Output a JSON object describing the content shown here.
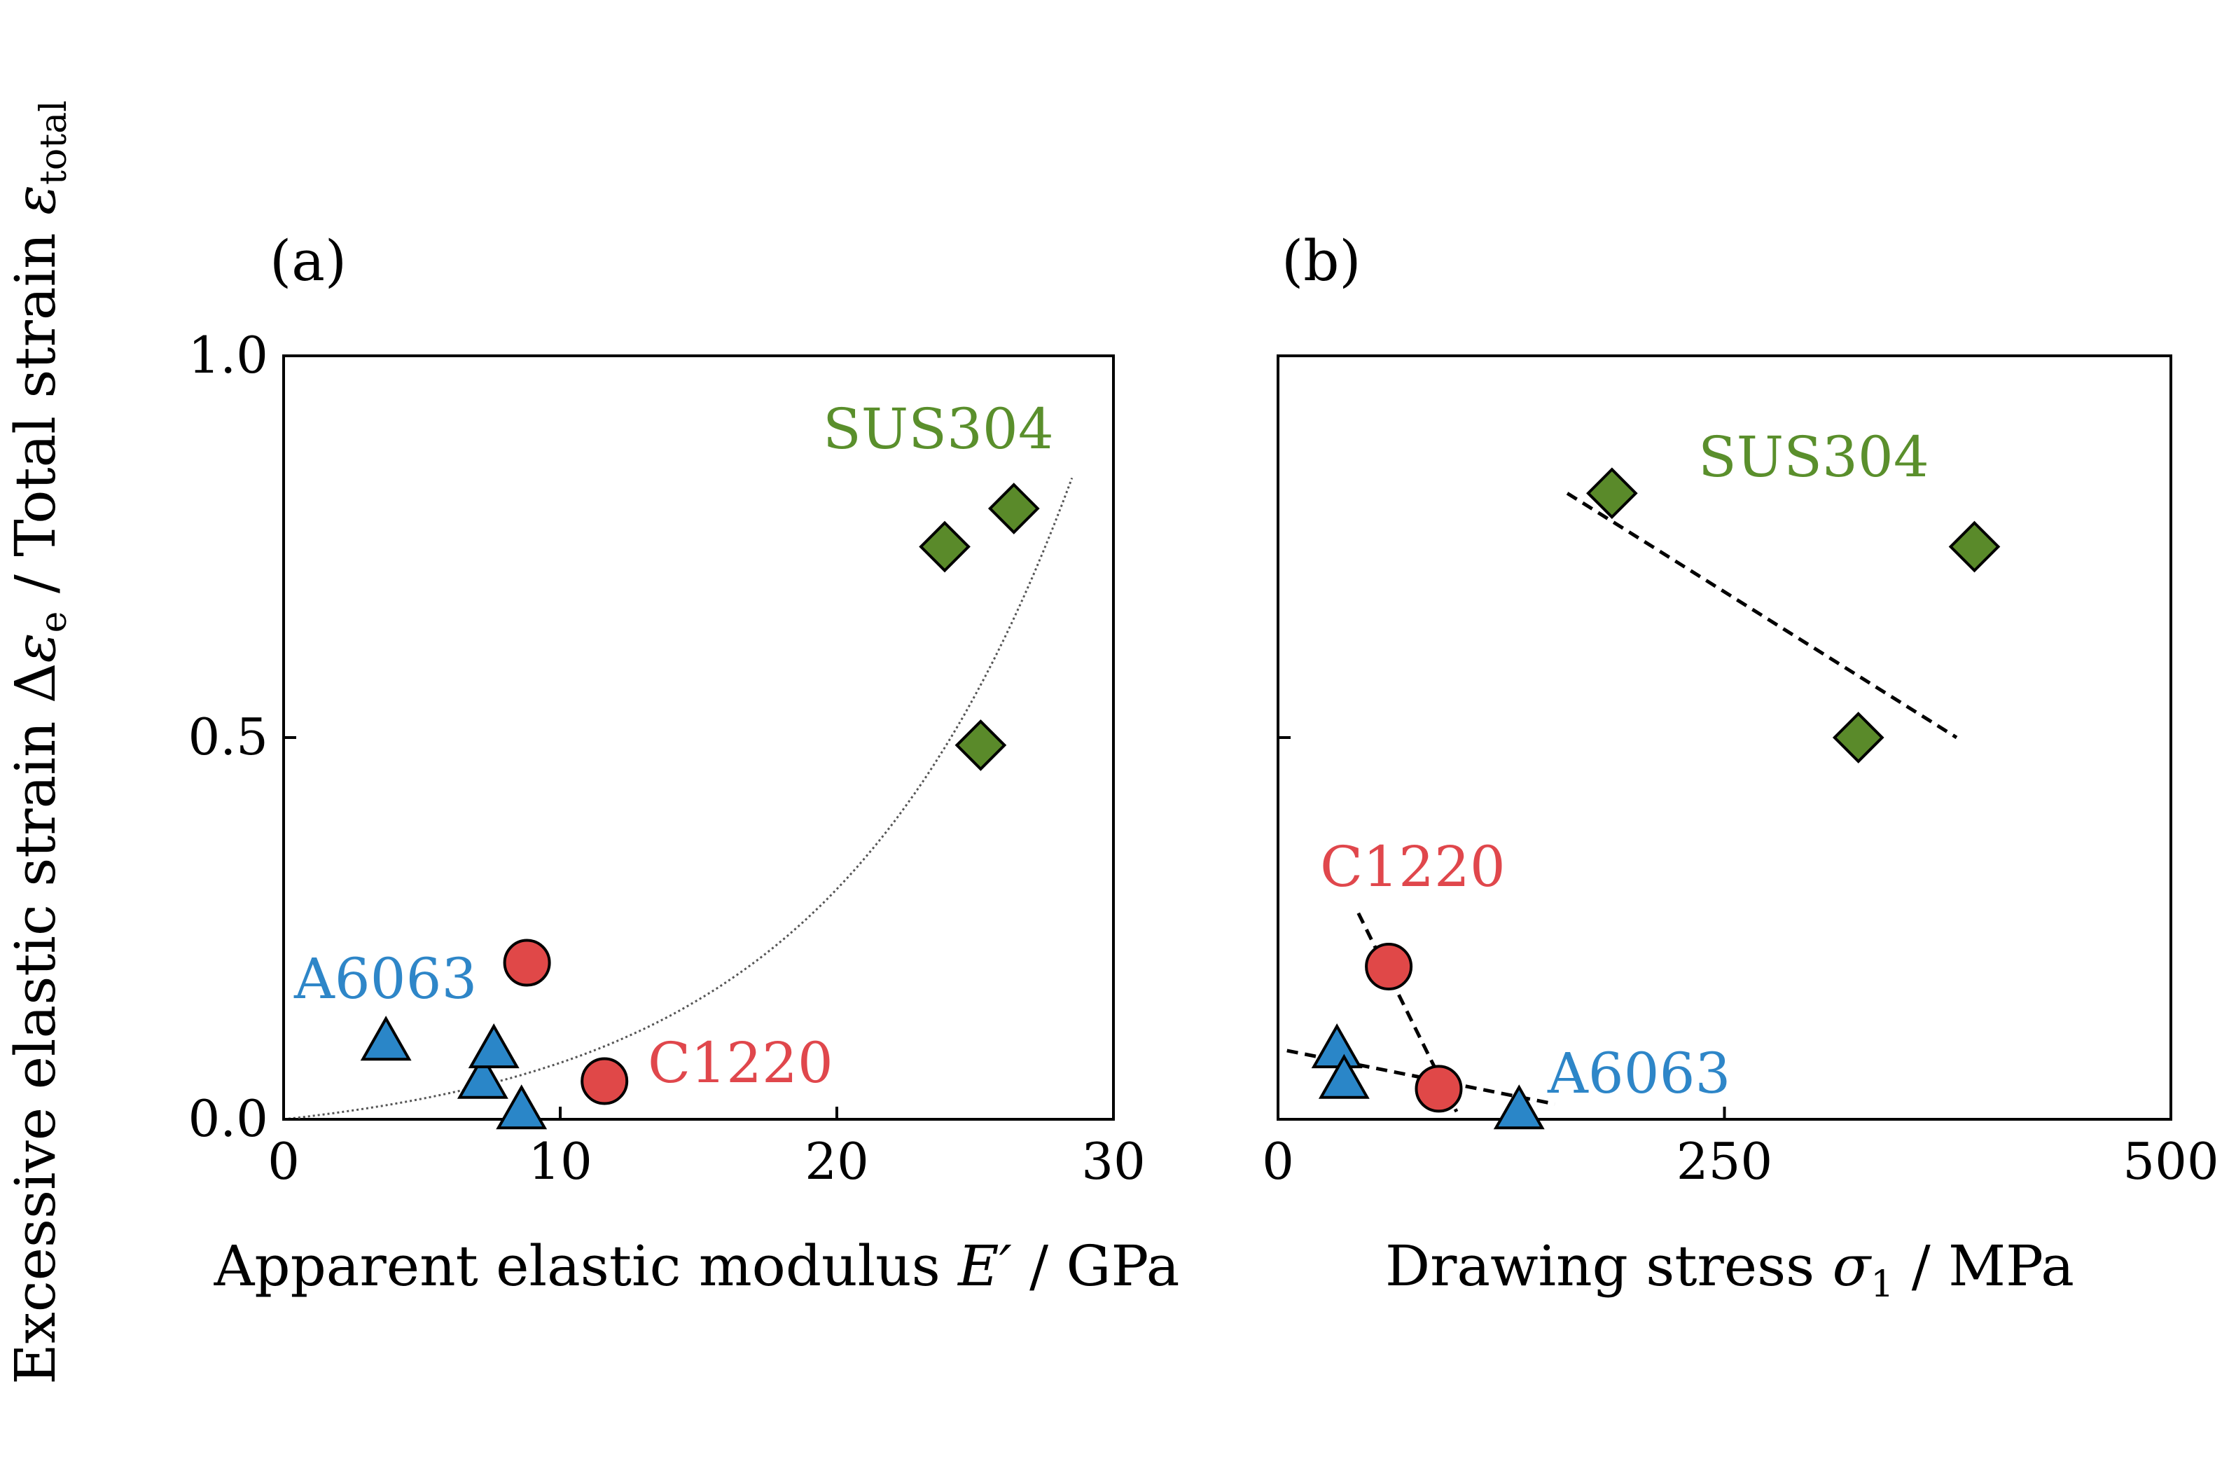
{
  "figure": {
    "ylabel_main": "Excessive elastic strain Δ",
    "ylabel_eps": "ε",
    "ylabel_sub": "e",
    "ylabel_mid": " / Total strain ",
    "ylabel_eps2": "ε",
    "ylabel_sub2": "total"
  },
  "colors": {
    "SUS304": "#5a8a2a",
    "C1220": "#e04848",
    "A6063": "#2a86c8",
    "SUS304_text": "#5a8f2c",
    "C1220_text": "#e0474c",
    "A6063_text": "#2e86c8"
  },
  "chart_data": [
    {
      "type": "scatter",
      "panel_label": "(a)",
      "title": "",
      "xlabel_pre": "Apparent elastic modulus ",
      "xlabel_sym": "E′",
      "xlabel_post": " / GPa",
      "ylabel": "Excessive elastic strain Δεe / Total strain εtotal",
      "xlim": [
        0,
        30
      ],
      "ylim": [
        0,
        1.0
      ],
      "x_ticks": [
        0,
        10,
        20,
        30
      ],
      "x_tick_labels": [
        "0",
        "10",
        "20",
        "30"
      ],
      "y_ticks": [
        0,
        0.5,
        1.0
      ],
      "y_tick_labels": [
        "0.0",
        "0.5",
        "1.0"
      ],
      "grid": false,
      "series": [
        {
          "name": "SUS304",
          "marker": "diamond",
          "points": [
            [
              23.9,
              0.75
            ],
            [
              26.4,
              0.8
            ],
            [
              25.2,
              0.49
            ]
          ]
        },
        {
          "name": "C1220",
          "marker": "circle",
          "points": [
            [
              8.8,
              0.205
            ],
            [
              11.6,
              0.05
            ]
          ]
        },
        {
          "name": "A6063",
          "marker": "triangle",
          "points": [
            [
              3.7,
              0.1
            ],
            [
              7.2,
              0.05
            ],
            [
              7.6,
              0.09
            ],
            [
              8.6,
              0.01
            ]
          ]
        }
      ],
      "trend": {
        "type": "exponential",
        "style": "dotted",
        "x_range": [
          0,
          28.5
        ],
        "y_at_end": 0.84
      },
      "annotations": [
        {
          "text": "SUS304",
          "series": "SUS304"
        },
        {
          "text": "C1220",
          "series": "C1220"
        },
        {
          "text": "A6063",
          "series": "A6063"
        }
      ]
    },
    {
      "type": "scatter",
      "panel_label": "(b)",
      "title": "",
      "xlabel_pre": "Drawing stress ",
      "xlabel_sym": "σ",
      "xlabel_sub": "1",
      "xlabel_post": " / MPa",
      "xlim": [
        0,
        500
      ],
      "ylim": [
        0,
        1.0
      ],
      "x_ticks": [
        0,
        250,
        500
      ],
      "x_tick_labels": [
        "0",
        "250",
        "500"
      ],
      "y_ticks": [
        0,
        0.5,
        1.0
      ],
      "grid": false,
      "series": [
        {
          "name": "SUS304",
          "marker": "diamond",
          "points": [
            [
              187,
              0.82
            ],
            [
              390,
              0.75
            ],
            [
              325,
              0.5
            ]
          ]
        },
        {
          "name": "C1220",
          "marker": "circle",
          "points": [
            [
              62,
              0.2
            ],
            [
              90,
              0.04
            ]
          ]
        },
        {
          "name": "A6063",
          "marker": "triangle",
          "points": [
            [
              33,
              0.09
            ],
            [
              37,
              0.05
            ],
            [
              135,
              0.01
            ]
          ]
        }
      ],
      "trendlines": [
        {
          "series": "SUS304",
          "style": "dashed",
          "from": [
            162,
            0.82
          ],
          "to": [
            380,
            0.5
          ]
        },
        {
          "series": "C1220",
          "style": "dashed",
          "from": [
            45,
            0.27
          ],
          "to": [
            100,
            0.01
          ]
        },
        {
          "series": "A6063",
          "style": "dashed",
          "from": [
            5,
            0.09
          ],
          "to": [
            155,
            0.02
          ]
        }
      ],
      "annotations": [
        {
          "text": "SUS304",
          "series": "SUS304"
        },
        {
          "text": "C1220",
          "series": "C1220"
        },
        {
          "text": "A6063",
          "series": "A6063"
        }
      ]
    }
  ]
}
